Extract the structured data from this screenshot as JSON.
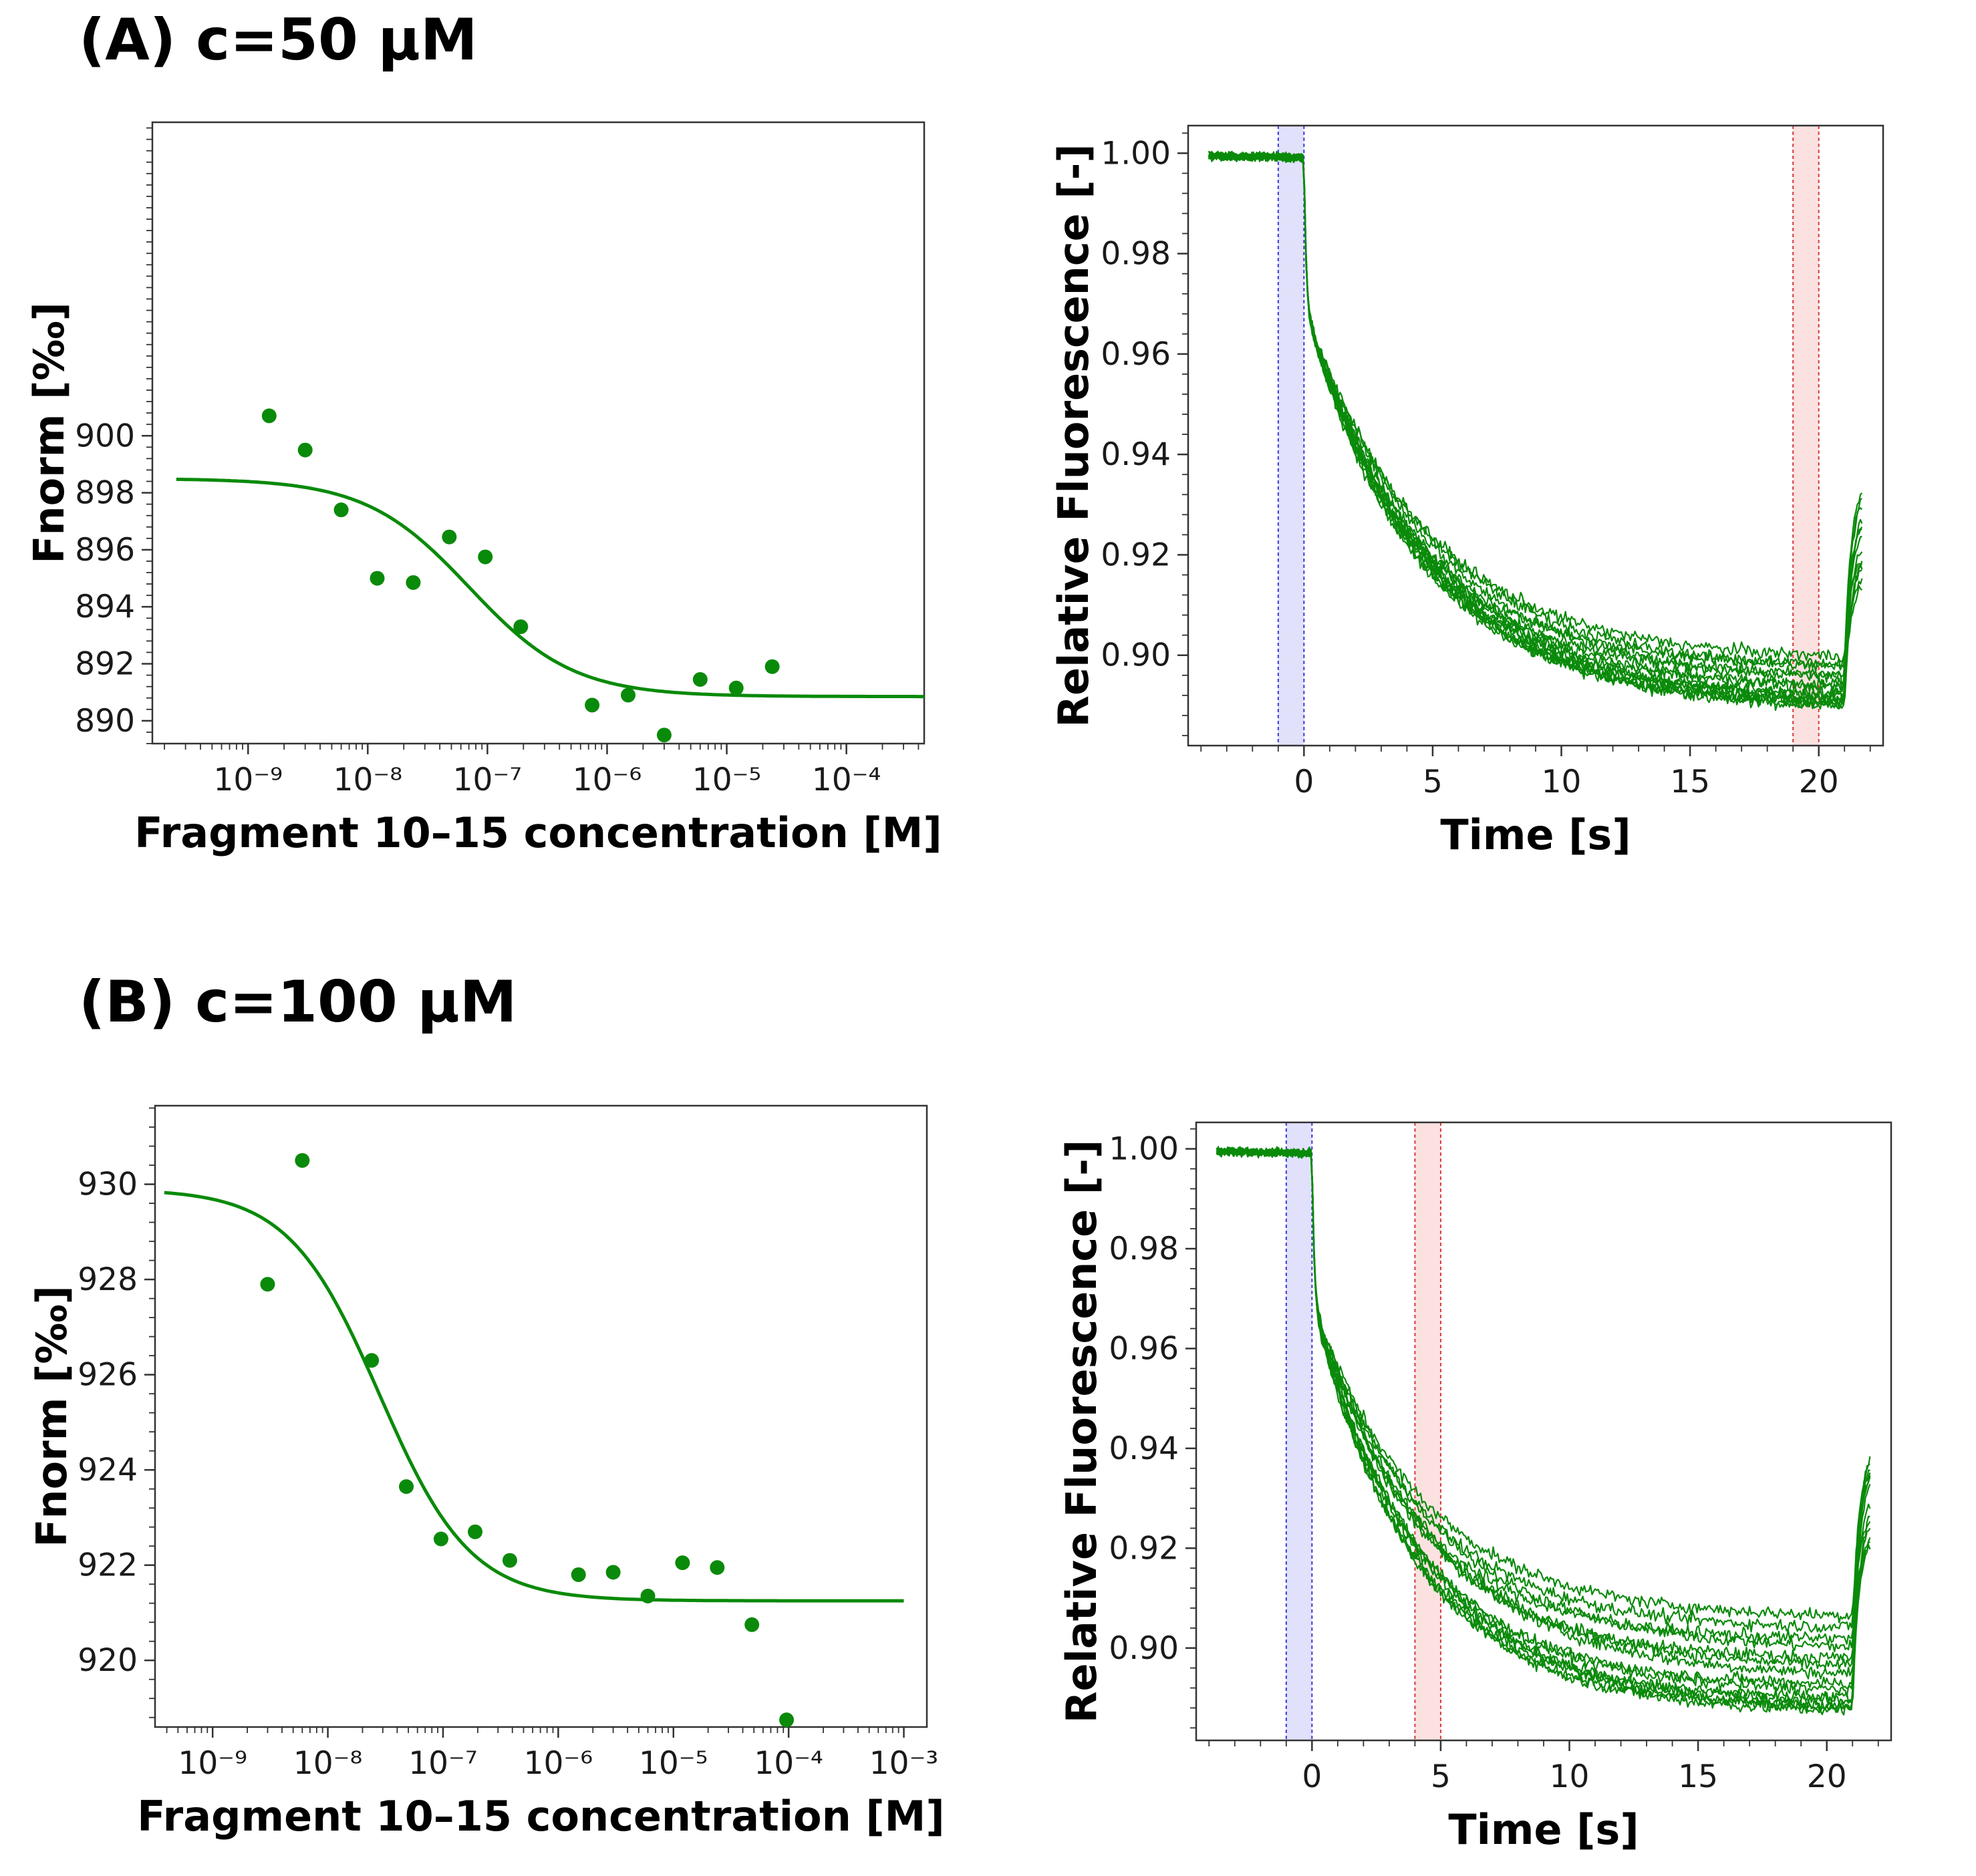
{
  "panels": [
    {
      "title": "(A) c=50 µM"
    },
    {
      "title": "(B) c=100 µM"
    }
  ],
  "colors": {
    "series": "#0a8a0a",
    "cold_region": "#dcdcfc",
    "cold_line": "#3b3bd6",
    "hot_region": "#fcdcdc",
    "hot_line": "#d63b3b"
  },
  "chart_data": [
    {
      "id": "A-dose",
      "type": "scatter",
      "title": "",
      "xlabel": "Fragment 10–15 concentration [M]",
      "ylabel": "Fnorm [‰]",
      "xscale": "log",
      "xlim_log10": [
        -9.8,
        -3.35
      ],
      "ylim": [
        889.2,
        911.0
      ],
      "xticks": [
        {
          "log": -9,
          "label": "10⁻⁹"
        },
        {
          "log": -8,
          "label": "10⁻⁸"
        },
        {
          "log": -7,
          "label": "10⁻⁷"
        },
        {
          "log": -6,
          "label": "10⁻⁶"
        },
        {
          "log": -5,
          "label": "10⁻⁵"
        },
        {
          "log": -4,
          "label": "10⁻⁴"
        }
      ],
      "yticks": [
        890,
        892,
        894,
        896,
        898,
        900
      ],
      "ytick_labels": [
        "890",
        "892",
        "894",
        "896",
        "898",
        "900"
      ],
      "points": [
        {
          "x": 1.5e-09,
          "y": 900.7
        },
        {
          "x": 3e-09,
          "y": 899.5
        },
        {
          "x": 6e-09,
          "y": 897.4
        },
        {
          "x": 1.2e-08,
          "y": 895.0
        },
        {
          "x": 2.4e-08,
          "y": 894.85
        },
        {
          "x": 4.8e-08,
          "y": 896.45
        },
        {
          "x": 9.6e-08,
          "y": 895.75
        },
        {
          "x": 1.9e-07,
          "y": 893.3
        },
        {
          "x": 7.5e-07,
          "y": 890.55
        },
        {
          "x": 1.5e-06,
          "y": 890.9
        },
        {
          "x": 3e-06,
          "y": 889.5
        },
        {
          "x": 6e-06,
          "y": 891.45
        },
        {
          "x": 1.2e-05,
          "y": 891.15
        },
        {
          "x": 2.4e-05,
          "y": 891.9
        }
      ],
      "fit": {
        "top": 898.5,
        "bottom": 890.85,
        "log_ec50": -7.15,
        "hill": 1.0,
        "x_from_log": -9.6,
        "x_to_log": -3.35
      }
    },
    {
      "id": "A-trace",
      "type": "line",
      "title": "",
      "xlabel": "Time [s]",
      "ylabel": "Relative Fluorescence [-]",
      "xlim": [
        -4.5,
        22.5
      ],
      "ylim": [
        0.882,
        1.0055
      ],
      "xticks": [
        0,
        5,
        10,
        15,
        20
      ],
      "xtick_labels": [
        "0",
        "5",
        "10",
        "15",
        "20"
      ],
      "yticks": [
        0.9,
        0.92,
        0.94,
        0.96,
        0.98,
        1.0
      ],
      "ytick_labels": [
        "0.90",
        "0.92",
        "0.94",
        "0.96",
        "0.98",
        "1.00"
      ],
      "cold_region": [
        -1.0,
        0.0
      ],
      "hot_region": [
        19.0,
        20.0
      ],
      "trace_count": 14,
      "trace_model": {
        "t_start": -3.7,
        "t_jump": 0.0,
        "t_off": 21.0,
        "t_end": 21.7,
        "baseline": 0.9995,
        "jump_drop": 0.03,
        "plateau_min": 0.889,
        "plateau_max": 0.899,
        "tau": 4.6,
        "recover_min": 0.912,
        "recover_max": 0.937,
        "noise": 0.0012
      }
    },
    {
      "id": "B-dose",
      "type": "scatter",
      "title": "",
      "xlabel": "Fragment 10–15 concentration [M]",
      "ylabel": "Fnorm [‰]",
      "xscale": "log",
      "xlim_log10": [
        -9.5,
        -2.8
      ],
      "ylim": [
        918.6,
        931.65
      ],
      "xticks": [
        {
          "log": -9,
          "label": "10⁻⁹"
        },
        {
          "log": -8,
          "label": "10⁻⁸"
        },
        {
          "log": -7,
          "label": "10⁻⁷"
        },
        {
          "log": -6,
          "label": "10⁻⁶"
        },
        {
          "log": -5,
          "label": "10⁻⁵"
        },
        {
          "log": -4,
          "label": "10⁻⁴"
        },
        {
          "log": -3,
          "label": "10⁻³"
        }
      ],
      "yticks": [
        920,
        922,
        924,
        926,
        928,
        930
      ],
      "ytick_labels": [
        "920",
        "922",
        "924",
        "926",
        "928",
        "930"
      ],
      "points": [
        {
          "x": 3e-09,
          "y": 927.9
        },
        {
          "x": 6e-09,
          "y": 930.5
        },
        {
          "x": 2.4e-08,
          "y": 926.3
        },
        {
          "x": 4.8e-08,
          "y": 923.65
        },
        {
          "x": 9.6e-08,
          "y": 922.55
        },
        {
          "x": 1.9e-07,
          "y": 922.7
        },
        {
          "x": 3.8e-07,
          "y": 922.1
        },
        {
          "x": 1.5e-06,
          "y": 921.8
        },
        {
          "x": 3e-06,
          "y": 921.85
        },
        {
          "x": 6e-06,
          "y": 921.35
        },
        {
          "x": 1.2e-05,
          "y": 922.05
        },
        {
          "x": 2.4e-05,
          "y": 921.95
        },
        {
          "x": 4.8e-05,
          "y": 920.75
        },
        {
          "x": 9.6e-05,
          "y": 918.75
        }
      ],
      "fit": {
        "top": 929.9,
        "bottom": 921.25,
        "log_ec50": -7.55,
        "hill": 1.1,
        "x_from_log": -9.42,
        "x_to_log": -3.0
      }
    },
    {
      "id": "B-trace",
      "type": "line",
      "title": "",
      "xlabel": "Time [s]",
      "ylabel": "Relative Fluorescence [-]",
      "xlim": [
        -4.5,
        22.5
      ],
      "ylim": [
        0.8815,
        1.0053
      ],
      "xticks": [
        0,
        5,
        10,
        15,
        20
      ],
      "xtick_labels": [
        "0",
        "5",
        "10",
        "15",
        "20"
      ],
      "yticks": [
        0.9,
        0.92,
        0.94,
        0.96,
        0.98,
        1.0
      ],
      "ytick_labels": [
        "0.90",
        "0.92",
        "0.94",
        "0.96",
        "0.98",
        "1.00"
      ],
      "cold_region": [
        -1.0,
        0.0
      ],
      "hot_region": [
        4.0,
        5.0
      ],
      "trace_count": 14,
      "trace_model": {
        "t_start": -3.7,
        "t_jump": 0.0,
        "t_off": 21.0,
        "t_end": 21.7,
        "baseline": 0.9995,
        "jump_drop": 0.03,
        "plateau_min": 0.887,
        "plateau_max": 0.906,
        "tau": 4.3,
        "recover_min": 0.918,
        "recover_max": 0.942,
        "noise": 0.0012
      }
    }
  ]
}
